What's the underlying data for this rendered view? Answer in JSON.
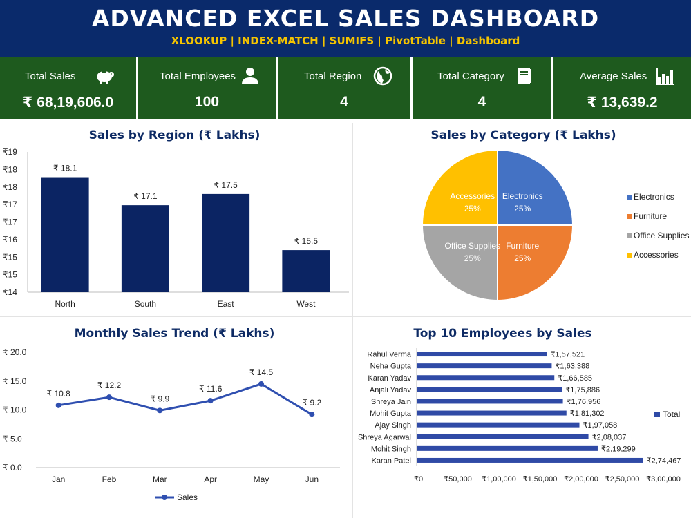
{
  "header": {
    "title": "ADVANCED EXCEL SALES DASHBOARD",
    "subtitle": "XLOOKUP | INDEX-MATCH | SUMIFS | PivotTable | Dashboard"
  },
  "kpis": [
    {
      "label": "Total Sales",
      "value": "₹ 68,19,606.0",
      "icon": "piggy-bank-icon"
    },
    {
      "label": "Total Employees",
      "value": "100",
      "icon": "person-icon"
    },
    {
      "label": "Total Region",
      "value": "4",
      "icon": "globe-icon"
    },
    {
      "label": "Total Category",
      "value": "4",
      "icon": "book-icon"
    },
    {
      "label": "Average Sales",
      "value": "₹ 13,639.2",
      "icon": "bar-chart-icon"
    }
  ],
  "colors": {
    "header_bg": "#0a2a6b",
    "subtitle": "#f5c400",
    "kpi_bg": "#1e5a1e",
    "navy": "#0d2a64",
    "bar": "#0b2463",
    "line": "#2f4fb0",
    "hbar": "#2f4aa6"
  },
  "chart_data": [
    {
      "type": "bar",
      "title": "Sales by Region (₹ Lakhs)",
      "categories": [
        "North",
        "South",
        "East",
        "West"
      ],
      "values": [
        18.1,
        17.1,
        17.5,
        15.5
      ],
      "data_labels": [
        "₹ 18.1",
        "₹ 17.1",
        "₹ 17.5",
        "₹ 15.5"
      ],
      "ylim": [
        14,
        19
      ],
      "y_ticks": [
        19,
        18.375,
        17.75,
        17.125,
        16.5,
        15.875,
        15.25,
        14.625,
        14
      ],
      "y_tick_labels": [
        "₹19",
        "₹18",
        "₹18",
        "₹17",
        "₹17",
        "₹16",
        "₹15",
        "₹15",
        "₹14"
      ],
      "grid": false
    },
    {
      "type": "pie",
      "title": "Sales by Category (₹ Lakhs)",
      "slices": [
        {
          "name": "Electronics",
          "label": "Electronics",
          "percent_label": "25%",
          "value": 25,
          "color": "#4472c4"
        },
        {
          "name": "Furniture",
          "label": "Furniture",
          "percent_label": "25%",
          "value": 25,
          "color": "#ed7d31"
        },
        {
          "name": "Office Supplies",
          "label": "Office Supplies",
          "percent_label": "25%",
          "value": 25,
          "color": "#a5a5a5"
        },
        {
          "name": "Accessories",
          "label": "Accessories",
          "percent_label": "25%",
          "value": 25,
          "color": "#ffc000"
        }
      ],
      "legend": "right"
    },
    {
      "type": "line",
      "title": "Monthly Sales Trend (₹ Lakhs)",
      "categories": [
        "Jan",
        "Feb",
        "Mar",
        "Apr",
        "May",
        "Jun"
      ],
      "series": [
        {
          "name": "Sales",
          "values": [
            10.8,
            12.2,
            9.9,
            11.6,
            14.5,
            9.2
          ],
          "data_labels": [
            "₹ 10.8",
            "₹ 12.2",
            "₹ 9.9",
            "₹ 11.6",
            "₹ 14.5",
            "₹ 9.2"
          ]
        }
      ],
      "ylim": [
        0,
        20
      ],
      "y_ticks": [
        0,
        5,
        10,
        15,
        20
      ],
      "y_tick_labels": [
        "₹ 0.0",
        "₹ 5.0",
        "₹ 10.0",
        "₹ 15.0",
        "₹ 20.0"
      ],
      "legend": "bottom"
    },
    {
      "type": "bar",
      "orientation": "horizontal",
      "title": "Top 10 Employees by Sales",
      "categories": [
        "Rahul Verma",
        "Neha Gupta",
        "Karan Yadav",
        "Anjali Yadav",
        "Shreya Jain",
        "Mohit Gupta",
        "Ajay Singh",
        "Shreya Agarwal",
        "Mohit Singh",
        "Karan Patel"
      ],
      "values": [
        157521,
        163388,
        166585,
        175886,
        176956,
        181302,
        197058,
        208037,
        219299,
        274467
      ],
      "data_labels": [
        "₹1,57,521",
        "₹1,63,388",
        "₹1,66,585",
        "₹1,75,886",
        "₹1,76,956",
        "₹1,81,302",
        "₹1,97,058",
        "₹2,08,037",
        "₹2,19,299",
        "₹2,74,467"
      ],
      "series_name": "Total",
      "xlim": [
        0,
        300000
      ],
      "x_ticks": [
        0,
        50000,
        100000,
        150000,
        200000,
        250000,
        300000
      ],
      "x_tick_labels": [
        "₹0",
        "₹50,000",
        "₹1,00,000",
        "₹1,50,000",
        "₹2,00,000",
        "₹2,50,000",
        "₹3,00,000"
      ],
      "legend": "right"
    }
  ]
}
